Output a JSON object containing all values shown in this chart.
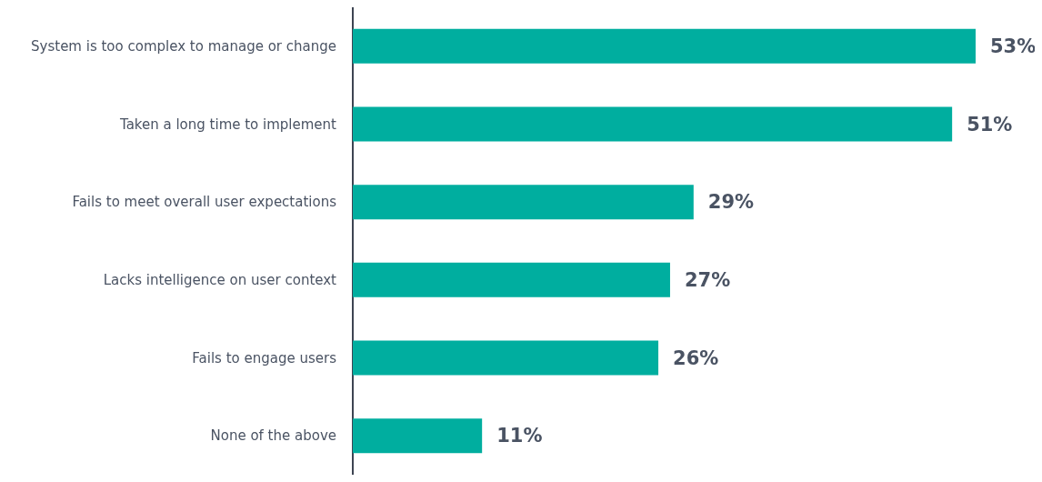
{
  "chart_data": {
    "type": "bar",
    "orientation": "horizontal",
    "categories": [
      "System is too complex to manage or change",
      "Taken a long time to implement",
      "Fails to meet overall user expectations",
      "Lacks intelligence on user context",
      "Fails to engage users",
      "None of the above"
    ],
    "values": [
      53,
      51,
      29,
      27,
      26,
      11
    ],
    "value_labels": [
      "53%",
      "51%",
      "29%",
      "27%",
      "26%",
      "11%"
    ],
    "color": "#00ae9f"
  }
}
